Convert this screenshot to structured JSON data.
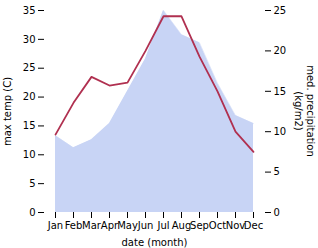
{
  "chart_data": {
    "type": "line",
    "categories": [
      "Jan",
      "Feb",
      "Mar",
      "Apr",
      "May",
      "Jun",
      "Jul",
      "Aug",
      "Sep",
      "Oct",
      "Nov",
      "Dec"
    ],
    "series": [
      {
        "type": "area",
        "axis": "y2",
        "color": "#c8d4f5",
        "values": [
          9.5,
          8.0,
          9.0,
          11.0,
          15.0,
          19.0,
          25.0,
          22.0,
          21.0,
          16.0,
          12.0,
          11.0
        ]
      },
      {
        "type": "line",
        "color": "#b03050",
        "values": [
          13.5,
          19.0,
          23.5,
          22.0,
          22.5,
          28.0,
          34.0,
          34.0,
          27.0,
          21.0,
          14.0,
          10.5
        ]
      }
    ],
    "xlabel": "date (month)",
    "ylabel": "max temp (C)",
    "y2label": "med. precipitation\n(kg/m2)",
    "ylim": [
      0,
      35
    ],
    "yticks": [
      0,
      5,
      10,
      15,
      20,
      25,
      30,
      35
    ],
    "y2lim": [
      0,
      25
    ],
    "y2ticks": [
      0,
      5,
      10,
      15,
      20,
      25
    ],
    "grid": false
  }
}
